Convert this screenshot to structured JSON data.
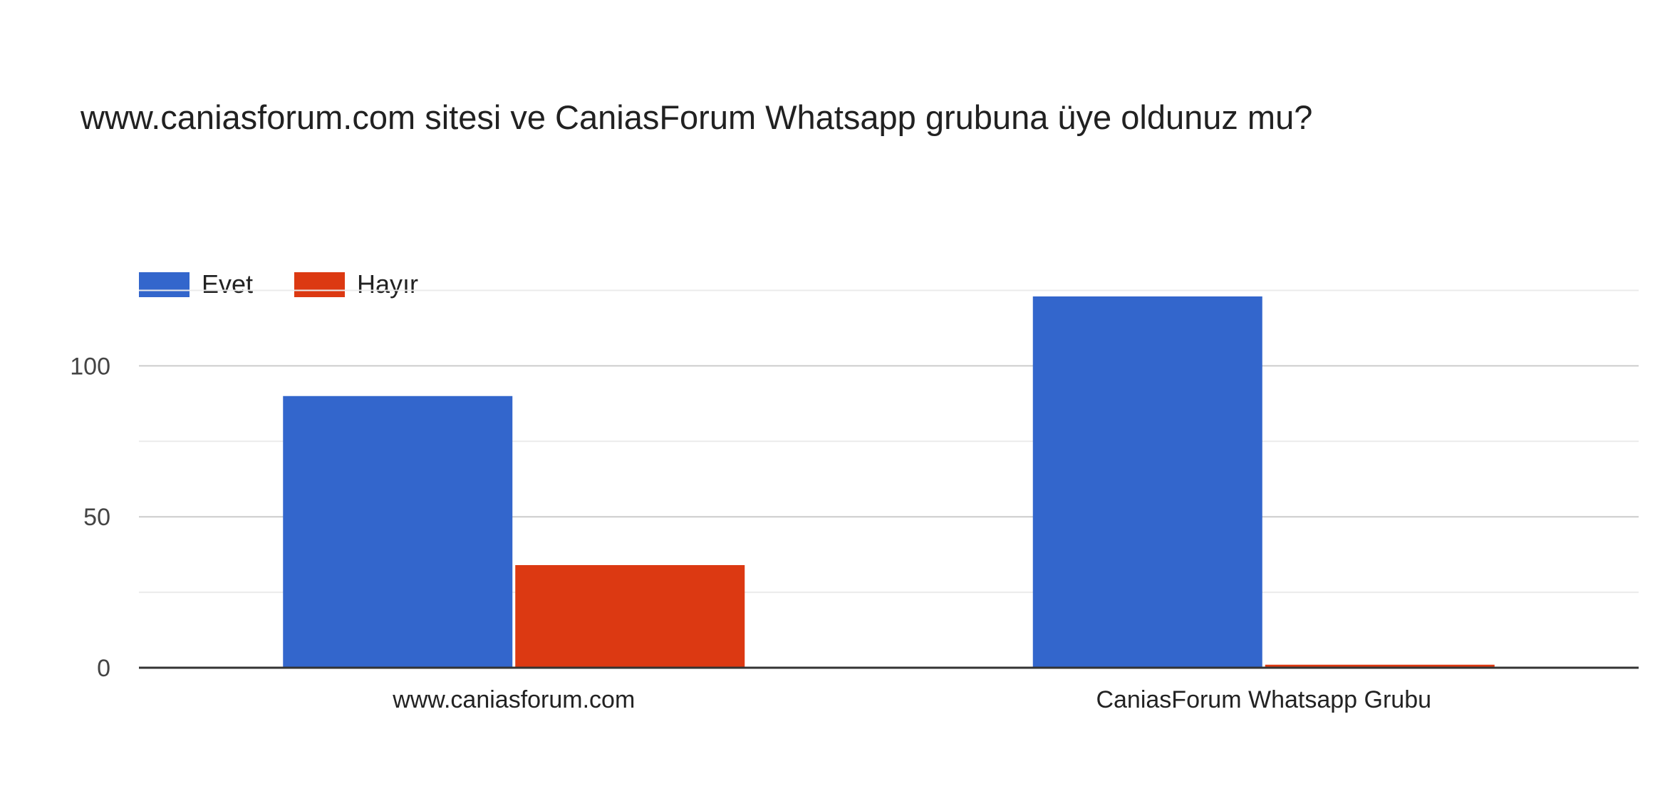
{
  "chart_data": {
    "type": "bar",
    "title": "www.caniasforum.com sitesi ve CaniasForum Whatsapp grubuna üye oldunuz mu?",
    "categories": [
      "www.caniasforum.com",
      "CaniasForum Whatsapp Grubu"
    ],
    "series": [
      {
        "name": "Evet",
        "values": [
          90,
          123
        ],
        "color": "#3366cc"
      },
      {
        "name": "Hayır",
        "values": [
          34,
          1
        ],
        "color": "#dc3912"
      }
    ],
    "y_ticks": [
      0,
      50,
      100
    ],
    "ylim": [
      0,
      125
    ],
    "minor_gridlines": true,
    "legend_position": "top-left"
  }
}
